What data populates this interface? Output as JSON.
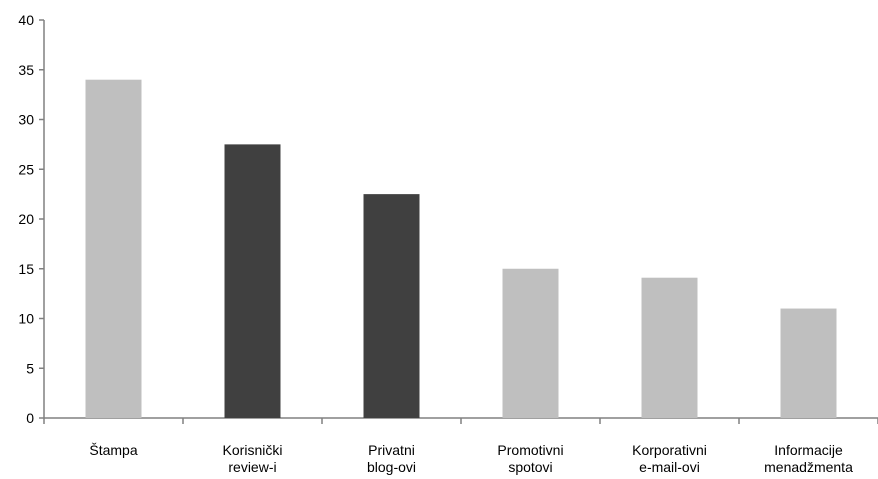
{
  "chart_data": {
    "type": "bar",
    "title": "",
    "xlabel": "",
    "ylabel": "",
    "ylim": [
      0,
      40
    ],
    "yticks": [
      0,
      5,
      10,
      15,
      20,
      25,
      30,
      35,
      40
    ],
    "grid": false,
    "legend": "none",
    "categories": [
      [
        "Štampa"
      ],
      [
        "Korisnički",
        "review-i"
      ],
      [
        "Privatni",
        "blog-ovi"
      ],
      [
        "Promotivni",
        "spotovi"
      ],
      [
        "Korporativni",
        "e-mail-ovi"
      ],
      [
        "Informacije",
        "menadžmenta"
      ]
    ],
    "values": [
      34,
      27.5,
      22.5,
      15,
      14.1,
      11
    ],
    "bar_colors": [
      "#bfbfbf",
      "#404040",
      "#404040",
      "#bfbfbf",
      "#bfbfbf",
      "#bfbfbf"
    ],
    "axis_color": "#808080"
  }
}
